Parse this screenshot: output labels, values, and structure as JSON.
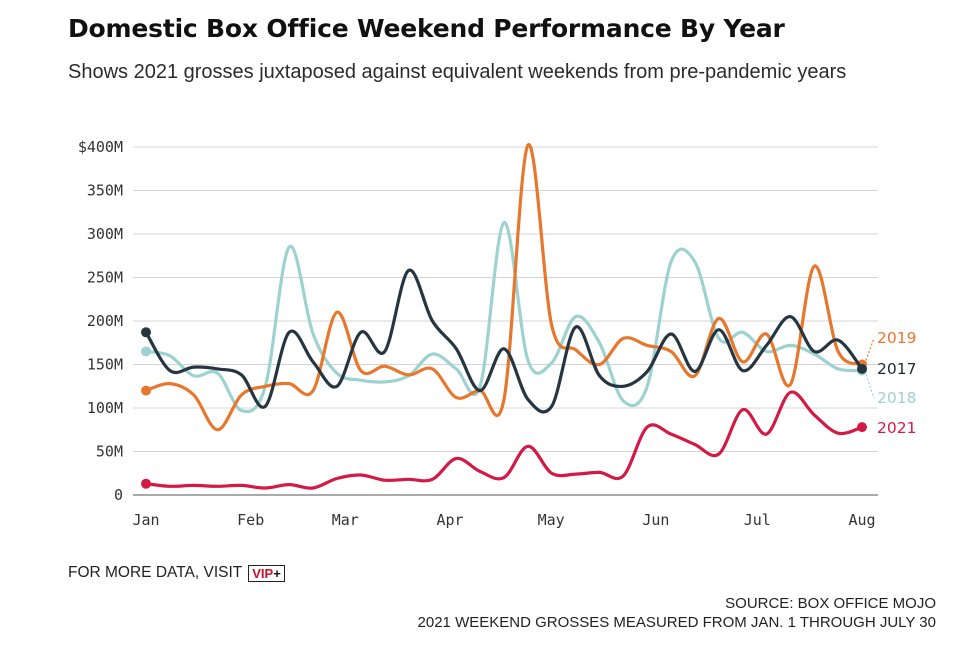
{
  "header": {
    "title": "Domestic Box Office Weekend Performance By Year",
    "subtitle": "Shows 2021 grosses juxtaposed against equivalent weekends from pre-pandemic years"
  },
  "footer": {
    "more_data_label": "FOR MORE DATA, VISIT",
    "vip_label": "VIP",
    "vip_plus": "+",
    "source_line": "SOURCE: BOX OFFICE MOJO",
    "note_line": "2021 WEEKEND GROSSES MEASURED FROM JAN. 1 THROUGH JULY 30"
  },
  "chart_data": {
    "type": "line",
    "title": "Domestic Box Office Weekend Performance By Year",
    "subtitle": "Shows 2021 grosses juxtaposed against equivalent weekends from pre-pandemic years",
    "xlabel": "",
    "ylabel": "",
    "x_unit": "weekend index (Jan 1 to Jul 30)",
    "x_ticks": [
      {
        "label": "Jan",
        "x": 0
      },
      {
        "label": "Feb",
        "x": 4.43
      },
      {
        "label": "Mar",
        "x": 8.43
      },
      {
        "label": "Apr",
        "x": 12.86
      },
      {
        "label": "May",
        "x": 17.14
      },
      {
        "label": "Jun",
        "x": 21.57
      },
      {
        "label": "Jul",
        "x": 25.86
      },
      {
        "label": "Aug",
        "x": 30.29
      }
    ],
    "y_ticks": [
      {
        "label": "0",
        "value": 0
      },
      {
        "label": "50M",
        "value": 50
      },
      {
        "label": "100M",
        "value": 100
      },
      {
        "label": "150M",
        "value": 150
      },
      {
        "label": "200M",
        "value": 200
      },
      {
        "label": "250M",
        "value": 250
      },
      {
        "label": "300M",
        "value": 300
      },
      {
        "label": "350M",
        "value": 350
      },
      {
        "label": "$400M",
        "value": 400
      }
    ],
    "xlim": [
      0,
      30.29
    ],
    "ylim": [
      0,
      400
    ],
    "y_unit": "millions USD",
    "grid": "horizontal",
    "legend": "end-of-line labels on the right",
    "series": [
      {
        "name": "2018",
        "color": "#9dd2d1",
        "values": [
          165,
          160,
          137,
          140,
          97,
          125,
          285,
          185,
          140,
          132,
          130,
          137,
          162,
          145,
          125,
          313,
          155,
          152,
          205,
          175,
          108,
          125,
          268,
          268,
          180,
          187,
          165,
          172,
          162,
          145,
          143
        ]
      },
      {
        "name": "2019",
        "color": "#e8772e",
        "values": [
          120,
          128,
          115,
          75,
          115,
          125,
          128,
          120,
          210,
          143,
          148,
          138,
          145,
          112,
          120,
          110,
          402,
          195,
          167,
          150,
          180,
          172,
          165,
          137,
          203,
          153,
          185,
          127,
          263,
          165,
          150
        ]
      },
      {
        "name": "2017",
        "color": "#253640",
        "values": [
          187,
          143,
          147,
          145,
          138,
          102,
          187,
          153,
          125,
          187,
          165,
          258,
          200,
          168,
          120,
          168,
          110,
          102,
          193,
          137,
          125,
          142,
          185,
          142,
          190,
          143,
          172,
          205,
          165,
          178,
          145
        ]
      },
      {
        "name": "2021",
        "color": "#d21a44",
        "values": [
          13,
          10,
          11,
          10,
          11,
          8,
          12,
          8,
          19,
          23,
          17,
          18,
          18,
          42,
          27,
          20,
          56,
          25,
          24,
          26,
          22,
          78,
          70,
          58,
          47,
          98,
          70,
          118,
          92,
          71,
          78
        ]
      }
    ]
  }
}
